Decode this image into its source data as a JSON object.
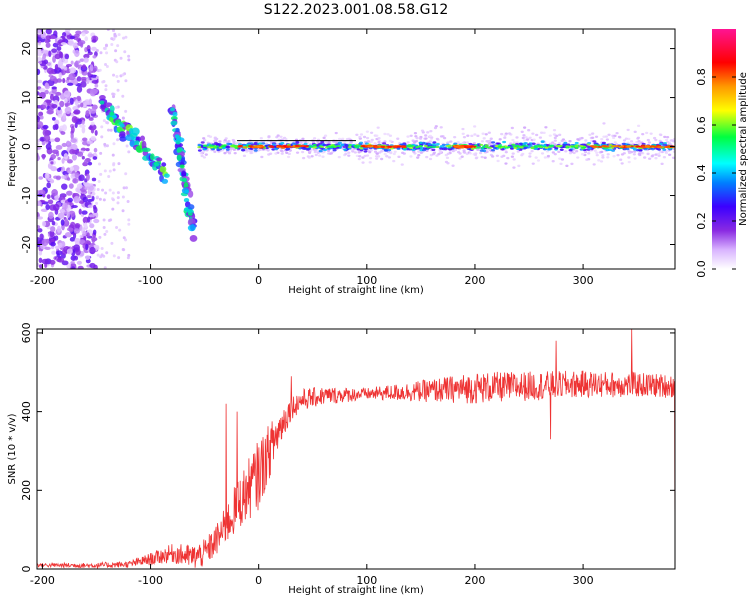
{
  "title": "S122.2023.001.08.58.G12",
  "chart_data": [
    {
      "type": "heatmap",
      "title": "S122.2023.001.08.58.G12",
      "xlabel": "Height of straight line (km)",
      "ylabel": "Frequency (Hz)",
      "xlim": [
        -205,
        385
      ],
      "ylim": [
        -25,
        24
      ],
      "xticks": [
        -200,
        -100,
        0,
        100,
        200,
        300
      ],
      "xtick_labels": [
        "-200",
        "-100",
        "0",
        "100",
        "200",
        "300"
      ],
      "yticks": [
        -20,
        -10,
        0,
        10,
        20
      ],
      "ytick_labels": [
        "-20",
        "-10",
        "0",
        "10",
        "20"
      ],
      "colorbar": {
        "label": "Normalized spectral amplitude",
        "range": [
          0,
          1
        ],
        "ticks": [
          0.0,
          0.2,
          0.4,
          0.6,
          0.8
        ],
        "tick_labels": [
          "0.0",
          "0.2",
          "0.4",
          "0.6",
          "0.8"
        ],
        "colors": [
          "#ffffff",
          "#d9b3ff",
          "#8a2be2",
          "#3b00ff",
          "#00c8ff",
          "#00ff40",
          "#ffff00",
          "#ff8000",
          "#ff0000",
          "#ff1493"
        ]
      },
      "features": [
        {
          "name": "scatter",
          "x": [
            -205,
            -150
          ],
          "y": [
            -25,
            24
          ],
          "level": 0.15
        },
        {
          "name": "branch_1",
          "x": [
            -145,
            -85
          ],
          "y_start": 9,
          "y_end": -6,
          "level": 0.35
        },
        {
          "name": "branch_2",
          "x": [
            -80,
            -60
          ],
          "y_start": 8,
          "y_end": -18,
          "level": 0.3
        },
        {
          "name": "main_ridge",
          "x": [
            -55,
            385
          ],
          "y": 0,
          "level": 0.75
        }
      ]
    },
    {
      "type": "line",
      "xlabel": "Height of straight line (km)",
      "ylabel": "SNR (10 * v/v)",
      "xlim": [
        -205,
        385
      ],
      "ylim": [
        0,
        610
      ],
      "xticks": [
        -200,
        -100,
        0,
        100,
        200,
        300
      ],
      "xtick_labels": [
        "-200",
        "-100",
        "0",
        "100",
        "200",
        "300"
      ],
      "yticks": [
        0,
        200,
        400,
        600
      ],
      "ytick_labels": [
        "0",
        "200",
        "400",
        "600"
      ],
      "color": "#ee3333",
      "trend_x": [
        -205,
        -150,
        -120,
        -100,
        -80,
        -60,
        -50,
        -40,
        -30,
        -20,
        -10,
        0,
        10,
        20,
        30,
        40,
        60,
        100,
        150,
        200,
        250,
        300,
        350,
        385
      ],
      "trend_y": [
        10,
        9,
        12,
        25,
        40,
        30,
        40,
        70,
        110,
        160,
        200,
        240,
        300,
        360,
        410,
        430,
        440,
        445,
        452,
        460,
        465,
        470,
        468,
        465
      ],
      "noise_x": [
        -205,
        -120,
        -40,
        0,
        30,
        100,
        200,
        385
      ],
      "noise_amp": [
        5,
        8,
        40,
        90,
        30,
        15,
        40,
        30
      ],
      "spikes": [
        {
          "x": -30,
          "y": 420
        },
        {
          "x": -20,
          "y": 400
        },
        {
          "x": 30,
          "y": 490
        },
        {
          "x": 270,
          "y": 330
        },
        {
          "x": 275,
          "y": 580
        },
        {
          "x": 345,
          "y": 610
        },
        {
          "x": 385,
          "y": 50
        }
      ]
    }
  ]
}
